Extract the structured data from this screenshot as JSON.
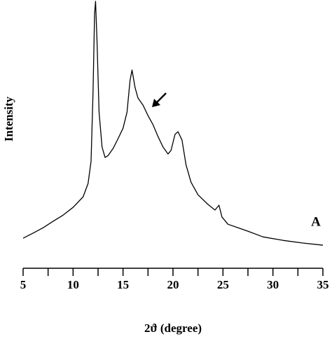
{
  "chart_data": {
    "type": "line",
    "x_label": "2ϑ (degree)",
    "y_label": "Intensity",
    "annotation": "A",
    "color": "#000000",
    "x": [
      5,
      6,
      7,
      8,
      9,
      10,
      11,
      11.5,
      11.8,
      12.0,
      12.15,
      12.25,
      12.4,
      12.6,
      12.9,
      13.2,
      13.5,
      14,
      14.5,
      15,
      15.4,
      15.7,
      15.9,
      16.2,
      16.5,
      17,
      17.5,
      18,
      18.5,
      19,
      19.5,
      19.8,
      20.2,
      20.5,
      20.9,
      21.3,
      21.8,
      22.5,
      23.5,
      24.2,
      24.6,
      24.9,
      25.5,
      26.5,
      27.5,
      29,
      31,
      33,
      35
    ],
    "values": [
      11.2,
      13.1,
      15.1,
      17.5,
      19.8,
      22.7,
      26.6,
      31.6,
      39.9,
      66,
      94.8,
      99.5,
      84.3,
      58.2,
      45.2,
      41.3,
      42,
      44.6,
      48.3,
      52.2,
      58.2,
      70,
      73.9,
      67.4,
      63.4,
      60.8,
      56.9,
      53.5,
      49.1,
      45.2,
      42.6,
      43.9,
      49.9,
      50.9,
      47.8,
      38.6,
      32.1,
      27.4,
      23.8,
      21.7,
      23.5,
      19.1,
      16.4,
      15.1,
      13.8,
      11.7,
      10.4,
      9.4,
      8.6
    ],
    "xlim": [
      5,
      35
    ],
    "ylim": [
      0,
      100
    ],
    "xticks": [
      5,
      10,
      15,
      20,
      25,
      30,
      35
    ],
    "minor_xticks": [
      7.5,
      12.5,
      17.5,
      22.5,
      27.5,
      32.5
    ]
  }
}
